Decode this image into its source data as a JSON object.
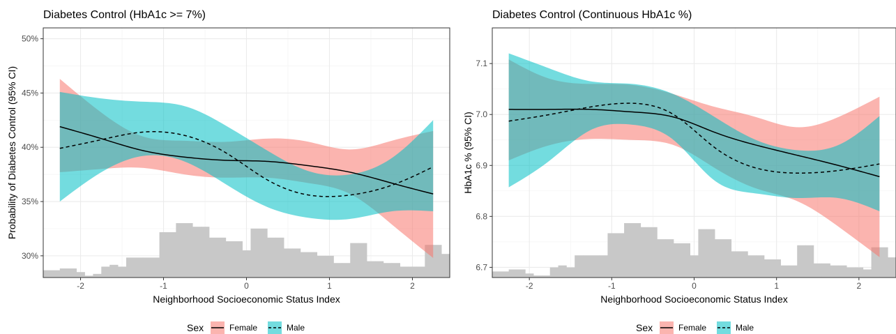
{
  "colors": {
    "female": "#F8766D",
    "male": "#00BFC4",
    "histogram": "#C8C8C8",
    "grid": "#EBEBEB",
    "line": "#000000"
  },
  "legend": {
    "title": "Sex",
    "female": "Female",
    "male": "Male"
  },
  "chart_data": [
    {
      "type": "line",
      "title": "Diabetes Control (HbA1c >= 7%)",
      "xlabel": "Neighborhood Socioeconomic Status Index",
      "ylabel": "Probability of Diabetes Control (95% CI)",
      "xlim": [
        -2.45,
        2.45
      ],
      "ylim": [
        0.28,
        0.51
      ],
      "xticks": [
        -2,
        -1,
        0,
        1,
        2
      ],
      "xtick_labels": [
        "-2",
        "-1",
        "0",
        "1",
        "2"
      ],
      "yticks": [
        0.3,
        0.35,
        0.4,
        0.45,
        0.5
      ],
      "ytick_labels": [
        "30%",
        "35%",
        "40%",
        "45%",
        "50%"
      ],
      "grid": true,
      "legend_position": "bottom",
      "x": [
        -2.25,
        -1.75,
        -1.25,
        -0.75,
        -0.25,
        0.25,
        0.75,
        1.25,
        1.75,
        2.25
      ],
      "series": [
        {
          "name": "Female",
          "linetype": "solid",
          "values": [
            0.419,
            0.408,
            0.397,
            0.391,
            0.388,
            0.387,
            0.383,
            0.377,
            0.367,
            0.357
          ],
          "ci_lower": [
            0.377,
            0.38,
            0.381,
            0.375,
            0.372,
            0.372,
            0.367,
            0.357,
            0.329,
            0.298
          ],
          "ci_upper": [
            0.463,
            0.432,
            0.41,
            0.406,
            0.405,
            0.408,
            0.405,
            0.398,
            0.406,
            0.415
          ]
        },
        {
          "name": "Male",
          "linetype": "dashed",
          "values": [
            0.399,
            0.407,
            0.414,
            0.411,
            0.395,
            0.37,
            0.356,
            0.356,
            0.365,
            0.382
          ],
          "ci_lower": [
            0.35,
            0.377,
            0.392,
            0.387,
            0.366,
            0.345,
            0.335,
            0.334,
            0.341,
            0.341
          ],
          "ci_upper": [
            0.451,
            0.445,
            0.442,
            0.438,
            0.42,
            0.397,
            0.378,
            0.375,
            0.39,
            0.425
          ]
        }
      ],
      "histogram": {
        "bin_start": -2.45,
        "bin_width": 0.1,
        "counts": [
          4,
          4,
          5,
          5,
          3,
          1,
          2,
          6,
          7,
          6,
          11,
          11,
          11,
          11,
          25,
          25,
          30,
          30,
          28,
          28,
          22,
          22,
          20,
          20,
          15,
          27,
          27,
          22,
          22,
          16,
          16,
          14,
          14,
          12,
          12,
          8,
          8,
          19,
          19,
          9,
          9,
          8,
          8,
          6,
          6,
          6,
          18,
          18,
          13,
          13,
          3,
          3,
          4,
          4
        ]
      }
    },
    {
      "type": "line",
      "title": "Diabetes Control (Continuous HbA1c %)",
      "xlabel": "Neighborhood Socioeconomic Status Index",
      "ylabel": "HbA1c % (95% CI)",
      "xlim": [
        -2.45,
        2.45
      ],
      "ylim": [
        6.68,
        7.17
      ],
      "xticks": [
        -2,
        -1,
        0,
        1,
        2
      ],
      "xtick_labels": [
        "-2",
        "-1",
        "0",
        "1",
        "2"
      ],
      "yticks": [
        6.7,
        6.8,
        6.9,
        7.0,
        7.1
      ],
      "ytick_labels": [
        "6.7",
        "6.8",
        "6.9",
        "7.0",
        "7.1"
      ],
      "grid": true,
      "legend_position": "bottom",
      "x": [
        -2.25,
        -1.75,
        -1.25,
        -0.75,
        -0.25,
        0.25,
        0.75,
        1.25,
        1.75,
        2.25
      ],
      "series": [
        {
          "name": "Female",
          "linetype": "solid",
          "values": [
            7.01,
            7.01,
            7.01,
            7.005,
            6.995,
            6.965,
            6.94,
            6.92,
            6.9,
            6.878
          ],
          "ci_lower": [
            6.91,
            6.94,
            6.952,
            6.95,
            6.94,
            6.895,
            6.855,
            6.83,
            6.78,
            6.72
          ],
          "ci_upper": [
            7.108,
            7.07,
            7.06,
            7.058,
            7.04,
            7.015,
            6.995,
            6.975,
            6.995,
            7.035
          ]
        },
        {
          "name": "Male",
          "linetype": "dashed",
          "values": [
            6.987,
            7.0,
            7.015,
            7.022,
            7.0,
            6.935,
            6.895,
            6.885,
            6.89,
            6.903
          ],
          "ci_lower": [
            6.857,
            6.91,
            6.97,
            6.98,
            6.95,
            6.87,
            6.845,
            6.836,
            6.836,
            6.81
          ],
          "ci_upper": [
            7.12,
            7.09,
            7.065,
            7.06,
            7.04,
            6.995,
            6.95,
            6.93,
            6.94,
            6.997
          ]
        }
      ],
      "histogram": {
        "bin_start": -2.45,
        "bin_width": 0.1,
        "counts": [
          3,
          3,
          4,
          4,
          2,
          1,
          1,
          5,
          6,
          5,
          11,
          11,
          11,
          11,
          22,
          22,
          27,
          27,
          25,
          25,
          19,
          19,
          17,
          17,
          11,
          24,
          24,
          19,
          19,
          13,
          13,
          11,
          11,
          9,
          9,
          6,
          6,
          16,
          16,
          7,
          7,
          6,
          6,
          5,
          5,
          4,
          15,
          15,
          10,
          10,
          2,
          2,
          3,
          3
        ]
      }
    }
  ]
}
